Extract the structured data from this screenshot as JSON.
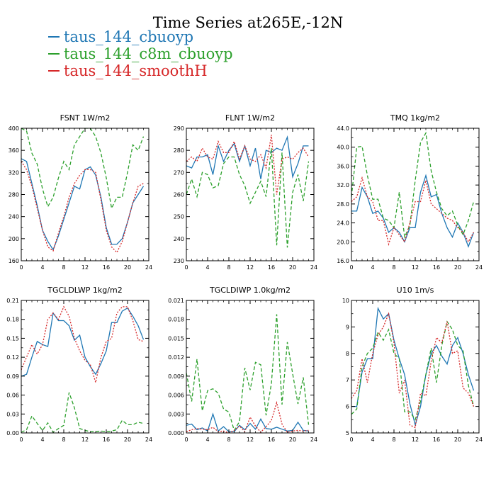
{
  "figure": {
    "title": "Time Series at265E,-12N",
    "legend": [
      {
        "name": "taus_144_cbuoyp",
        "color": "#1f77b4",
        "dash": "solid"
      },
      {
        "name": "taus_144_c8m_cbuoyp",
        "color": "#2ca02c",
        "dash": "dashed"
      },
      {
        "name": "taus_144_smoothH",
        "color": "#d62728",
        "dash": "dotted"
      }
    ]
  },
  "chart_data": [
    {
      "type": "line",
      "title": "FSNT   1W/m2",
      "xlim": [
        0,
        24
      ],
      "xticks": [
        0,
        4,
        8,
        12,
        16,
        20,
        24
      ],
      "ylim": [
        160,
        400
      ],
      "yticks": [
        160,
        200,
        240,
        280,
        320,
        360,
        400
      ],
      "ytick_labels": [
        "160",
        "200",
        "240",
        "280",
        "320",
        "360",
        "400"
      ],
      "x": [
        0,
        1,
        2,
        3,
        4,
        5,
        6,
        7,
        8,
        9,
        10,
        11,
        12,
        13,
        14,
        15,
        16,
        17,
        18,
        19,
        20,
        21,
        22,
        23
      ],
      "series": [
        {
          "name": "taus_144_cbuoyp",
          "values": [
            345,
            340,
            300,
            260,
            215,
            195,
            180,
            205,
            235,
            265,
            295,
            290,
            325,
            330,
            315,
            275,
            220,
            190,
            190,
            200,
            230,
            265,
            280,
            295
          ]
        },
        {
          "name": "taus_144_c8m_cbuoyp",
          "values": [
            400,
            395,
            355,
            335,
            290,
            258,
            275,
            310,
            340,
            325,
            370,
            385,
            400,
            400,
            385,
            355,
            310,
            255,
            275,
            275,
            320,
            370,
            360,
            385
          ]
        },
        {
          "name": "taus_144_smoothH",
          "values": [
            340,
            325,
            295,
            255,
            215,
            185,
            178,
            210,
            240,
            275,
            300,
            315,
            325,
            325,
            320,
            270,
            215,
            185,
            175,
            195,
            230,
            265,
            295,
            300
          ]
        }
      ]
    },
    {
      "type": "line",
      "title": "FLNT   1W/m2",
      "xlim": [
        0,
        24
      ],
      "xticks": [
        0,
        4,
        8,
        12,
        16,
        20,
        24
      ],
      "ylim": [
        230,
        290
      ],
      "yticks": [
        230,
        240,
        250,
        260,
        270,
        280,
        290
      ],
      "ytick_labels": [
        "230",
        "240",
        "250",
        "260",
        "270",
        "280",
        "290"
      ],
      "x": [
        0,
        1,
        2,
        3,
        4,
        5,
        6,
        7,
        8,
        9,
        10,
        11,
        12,
        13,
        14,
        15,
        16,
        17,
        18,
        19,
        20,
        21,
        22,
        23
      ],
      "series": [
        {
          "name": "taus_144_cbuoyp",
          "values": [
            273,
            272,
            277,
            277,
            278,
            269,
            282,
            275,
            280,
            283,
            275,
            282,
            273,
            281,
            267,
            280,
            279,
            281,
            280,
            286,
            268,
            274,
            282,
            282
          ]
        },
        {
          "name": "taus_144_c8m_cbuoyp",
          "values": [
            260,
            267,
            259,
            270,
            269,
            263,
            264,
            274,
            277,
            277,
            269,
            264,
            256,
            261,
            266,
            259,
            281,
            237,
            279,
            236,
            261,
            269,
            257,
            275
          ]
        },
        {
          "name": "taus_144_smoothH",
          "values": [
            275,
            277,
            275,
            281,
            277,
            276,
            284,
            279,
            279,
            284,
            276,
            282,
            276,
            275,
            278,
            272,
            287,
            260,
            276,
            277,
            276,
            279,
            281,
            277
          ]
        }
      ]
    },
    {
      "type": "line",
      "title": "TMQ   1kg/m2",
      "xlim": [
        0,
        24
      ],
      "xticks": [
        0,
        4,
        8,
        12,
        16,
        20,
        24
      ],
      "ylim": [
        16,
        44
      ],
      "yticks": [
        16,
        20,
        24,
        28,
        32,
        36,
        40,
        44
      ],
      "ytick_labels": [
        "16.0",
        "20.0",
        "24.0",
        "28.0",
        "32.0",
        "36.0",
        "40.0",
        "44.0"
      ],
      "x": [
        0,
        1,
        2,
        3,
        4,
        5,
        6,
        7,
        8,
        9,
        10,
        11,
        12,
        13,
        14,
        15,
        16,
        17,
        18,
        19,
        20,
        21,
        22,
        23
      ],
      "series": [
        {
          "name": "taus_144_cbuoyp",
          "values": [
            26.5,
            26.5,
            31.5,
            29.5,
            26,
            26.5,
            25,
            22,
            23,
            22,
            20,
            23,
            23,
            30.5,
            34,
            29.5,
            30,
            26,
            23,
            21,
            24,
            22,
            19,
            22
          ]
        },
        {
          "name": "taus_144_c8m_cbuoyp",
          "values": [
            29.5,
            40,
            40.2,
            34,
            29,
            29,
            25,
            24.5,
            23,
            30.5,
            21,
            23.5,
            33,
            41,
            43,
            35,
            30.5,
            27,
            25.5,
            26.5,
            23.5,
            21.5,
            24.5,
            28.5
          ]
        },
        {
          "name": "taus_144_smoothH",
          "values": [
            28.5,
            29.5,
            33.5,
            29.5,
            28.5,
            24.5,
            24.5,
            19.5,
            23,
            21.5,
            20,
            24,
            28.5,
            28.5,
            33,
            28,
            27,
            26,
            25,
            24.5,
            23,
            22,
            20,
            22
          ]
        }
      ]
    },
    {
      "type": "line",
      "title": "TGCLDLWP   1kg/m2",
      "xlim": [
        0,
        24
      ],
      "xticks": [
        0,
        4,
        8,
        12,
        16,
        20,
        24
      ],
      "ylim": [
        0,
        0.21
      ],
      "yticks": [
        0,
        0.03,
        0.06,
        0.09,
        0.12,
        0.15,
        0.18,
        0.21
      ],
      "ytick_labels": [
        "0.00",
        "0.03",
        "0.06",
        "0.09",
        "0.12",
        "0.15",
        "0.18",
        "0.21"
      ],
      "x": [
        0,
        1,
        2,
        3,
        4,
        5,
        6,
        7,
        8,
        9,
        10,
        11,
        12,
        13,
        14,
        15,
        16,
        17,
        18,
        19,
        20,
        21,
        22,
        23
      ],
      "series": [
        {
          "name": "taus_144_cbuoyp",
          "values": [
            0.09,
            0.093,
            0.12,
            0.145,
            0.14,
            0.137,
            0.19,
            0.178,
            0.178,
            0.17,
            0.147,
            0.155,
            0.12,
            0.105,
            0.093,
            0.11,
            0.13,
            0.175,
            0.175,
            0.193,
            0.198,
            0.185,
            0.17,
            0.148
          ]
        },
        {
          "name": "taus_144_c8m_cbuoyp",
          "values": [
            0.001,
            0.005,
            0.027,
            0.015,
            0.004,
            0.016,
            0.001,
            0.007,
            0.012,
            0.064,
            0.04,
            0.007,
            0.004,
            0.002,
            0.002,
            0.003,
            0.002,
            0.003,
            0.005,
            0.02,
            0.013,
            0.013,
            0.017,
            0.015
          ]
        },
        {
          "name": "taus_144_smoothH",
          "values": [
            0.1,
            0.12,
            0.14,
            0.125,
            0.14,
            0.18,
            0.19,
            0.18,
            0.2,
            0.185,
            0.15,
            0.13,
            0.115,
            0.108,
            0.08,
            0.12,
            0.145,
            0.15,
            0.19,
            0.2,
            0.2,
            0.178,
            0.148,
            0.145
          ]
        }
      ]
    },
    {
      "type": "line",
      "title": "TGCLDIWP   1.0kg/m2",
      "xlim": [
        0,
        24
      ],
      "xticks": [
        0,
        4,
        8,
        12,
        16,
        20,
        24
      ],
      "ylim": [
        0,
        0.021
      ],
      "yticks": [
        0,
        0.003,
        0.006,
        0.009,
        0.012,
        0.015,
        0.018,
        0.021
      ],
      "ytick_labels": [
        "0.000",
        "0.003",
        "0.006",
        "0.009",
        "0.012",
        "0.015",
        "0.018",
        "0.021"
      ],
      "x": [
        0,
        1,
        2,
        3,
        4,
        5,
        6,
        7,
        8,
        9,
        10,
        11,
        12,
        13,
        14,
        15,
        16,
        17,
        18,
        19,
        20,
        21,
        22,
        23
      ],
      "series": [
        {
          "name": "taus_144_cbuoyp",
          "values": [
            0.0012,
            0.0014,
            0.0005,
            0.0008,
            0.0003,
            0.003,
            0.0003,
            0.001,
            0.0002,
            0.0002,
            0.0012,
            0.0005,
            0.0015,
            0.0006,
            0.0022,
            0.0007,
            0.0006,
            0.0009,
            0.0006,
            0.0003,
            0.0004,
            0.0017,
            0.0004,
            0.0003
          ]
        },
        {
          "name": "taus_144_c8m_cbuoyp",
          "values": [
            0.0095,
            0.005,
            0.0117,
            0.0035,
            0.0067,
            0.007,
            0.0063,
            0.0038,
            0.0033,
            0.0004,
            0.0018,
            0.0103,
            0.0068,
            0.0112,
            0.0108,
            0.0028,
            0.0078,
            0.0188,
            0.0045,
            0.0144,
            0.0094,
            0.0046,
            0.0088,
            0.0013
          ]
        },
        {
          "name": "taus_144_smoothH",
          "values": [
            0.0002,
            0.0005,
            0.0007,
            0.0006,
            0.0005,
            0.0009,
            0.0002,
            0.0003,
            0,
            0.0004,
            0.0011,
            0.0002,
            0.0025,
            0.0011,
            0.0001,
            0.001,
            0.002,
            0.0048,
            0.0014,
            0.0001,
            0.0003,
            0.0004,
            0.0003,
            0.0004
          ]
        }
      ]
    },
    {
      "type": "line",
      "title": "U10   1m/s",
      "xlim": [
        0,
        24
      ],
      "xticks": [
        0,
        4,
        8,
        12,
        16,
        20,
        24
      ],
      "ylim": [
        5,
        10
      ],
      "yticks": [
        5,
        6,
        7,
        8,
        9,
        10
      ],
      "ytick_labels": [
        "5",
        "6",
        "7",
        "8",
        "9",
        "10"
      ],
      "x": [
        0,
        1,
        2,
        3,
        4,
        5,
        6,
        7,
        8,
        9,
        10,
        11,
        12,
        13,
        14,
        15,
        16,
        17,
        18,
        19,
        20,
        21,
        22,
        23
      ],
      "series": [
        {
          "name": "taus_144_cbuoyp",
          "values": [
            6.0,
            6.0,
            7.3,
            7.8,
            7.8,
            9.7,
            9.3,
            9.5,
            8.5,
            7.8,
            7.2,
            6.1,
            5.3,
            6.0,
            7.2,
            8.0,
            8.3,
            7.9,
            7.6,
            8.3,
            8.6,
            8.0,
            7.2,
            6.6
          ]
        },
        {
          "name": "taus_144_c8m_cbuoyp",
          "values": [
            5.7,
            5.9,
            7.5,
            8.0,
            8.2,
            8.8,
            8.5,
            8.9,
            8.0,
            7.8,
            5.8,
            5.8,
            5.5,
            6.2,
            7.2,
            8.2,
            6.9,
            8.3,
            9.2,
            8.9,
            8.3,
            8.1,
            6.8,
            6.0
          ]
        },
        {
          "name": "taus_144_smoothH",
          "values": [
            6.3,
            6.6,
            7.8,
            6.9,
            8.0,
            8.7,
            9.0,
            9.5,
            8.4,
            6.5,
            7.0,
            5.3,
            5.2,
            6.5,
            6.4,
            7.7,
            8.6,
            8.4,
            9.2,
            8.0,
            8.1,
            6.7,
            6.5,
            6.0
          ]
        }
      ]
    }
  ]
}
